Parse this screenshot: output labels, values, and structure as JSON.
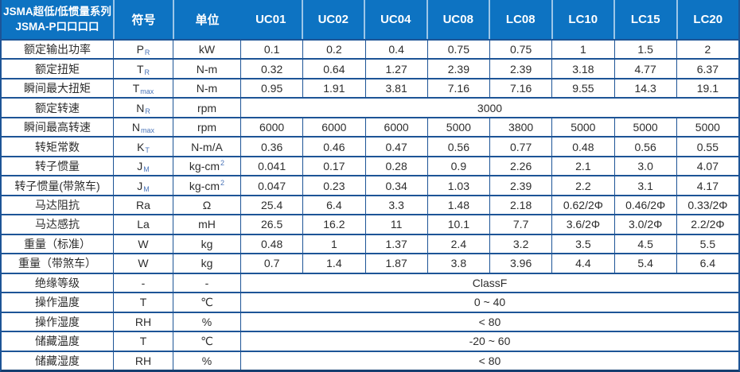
{
  "table": {
    "title_line1": "JSMA超低/低惯量系列",
    "title_line2": "JSMA-P口口口口",
    "col_symbol": "符号",
    "col_unit": "单位",
    "models": [
      "UC01",
      "UC02",
      "UC04",
      "UC08",
      "LC08",
      "LC10",
      "LC15",
      "LC20"
    ],
    "rows": [
      {
        "label": "额定输出功率",
        "symbol": "P",
        "sub": "R",
        "unit": "kW",
        "values": [
          "0.1",
          "0.2",
          "0.4",
          "0.75",
          "0.75",
          "1",
          "1.5",
          "2"
        ]
      },
      {
        "label": "额定扭矩",
        "symbol": "T",
        "sub": "R",
        "unit": "N-m",
        "values": [
          "0.32",
          "0.64",
          "1.27",
          "2.39",
          "2.39",
          "3.18",
          "4.77",
          "6.37"
        ]
      },
      {
        "label": "瞬间最大扭矩",
        "symbol": "T",
        "sub": "max",
        "unit": "N-m",
        "values": [
          "0.95",
          "1.91",
          "3.81",
          "7.16",
          "7.16",
          "9.55",
          "14.3",
          "19.1"
        ]
      },
      {
        "label": "额定转速",
        "symbol": "N",
        "sub": "R",
        "unit": "rpm",
        "merged": "3000"
      },
      {
        "label": "瞬间最高转速",
        "symbol": "N",
        "sub": "max",
        "unit": "rpm",
        "values": [
          "6000",
          "6000",
          "6000",
          "5000",
          "3800",
          "5000",
          "5000",
          "5000"
        ]
      },
      {
        "label": "转矩常数",
        "symbol": "K",
        "sub": "T",
        "unit": "N-m/A",
        "values": [
          "0.36",
          "0.46",
          "0.47",
          "0.56",
          "0.77",
          "0.48",
          "0.56",
          "0.55"
        ]
      },
      {
        "label": "转子惯量",
        "symbol": "J",
        "sub": "M",
        "unit": "kg-cm",
        "unit_sup": "2",
        "values": [
          "0.041",
          "0.17",
          "0.28",
          "0.9",
          "2.26",
          "2.1",
          "3.0",
          "4.07"
        ]
      },
      {
        "label": "转子惯量(带煞车)",
        "symbol": "J",
        "sub": "M",
        "unit": "kg-cm",
        "unit_sup": "2",
        "values": [
          "0.047",
          "0.23",
          "0.34",
          "1.03",
          "2.39",
          "2.2",
          "3.1",
          "4.17"
        ]
      },
      {
        "label": "马达阻抗",
        "symbol": "Ra",
        "unit": "Ω",
        "values": [
          "25.4",
          "6.4",
          "3.3",
          "1.48",
          "2.18",
          "0.62/2Φ",
          "0.46/2Φ",
          "0.33/2Φ"
        ]
      },
      {
        "label": "马达感抗",
        "symbol": "La",
        "unit": "mH",
        "values": [
          "26.5",
          "16.2",
          "11",
          "10.1",
          "7.7",
          "3.6/2Φ",
          "3.0/2Φ",
          "2.2/2Φ"
        ]
      },
      {
        "label": "重量（标准）",
        "symbol": "W",
        "unit": "kg",
        "values": [
          "0.48",
          "1",
          "1.37",
          "2.4",
          "3.2",
          "3.5",
          "4.5",
          "5.5"
        ]
      },
      {
        "label": "重量（带煞车）",
        "symbol": "W",
        "unit": "kg",
        "values": [
          "0.7",
          "1.4",
          "1.87",
          "3.8",
          "3.96",
          "4.4",
          "5.4",
          "6.4"
        ]
      },
      {
        "label": "绝缘等级",
        "symbol": "-",
        "unit": "-",
        "merged": "ClassF"
      },
      {
        "label": "操作温度",
        "symbol": "T",
        "unit": "℃",
        "merged": "0 ~ 40"
      },
      {
        "label": "操作湿度",
        "symbol": "RH",
        "unit": "%",
        "merged": "< 80"
      },
      {
        "label": "储藏温度",
        "symbol": "T",
        "unit": "℃",
        "merged": "-20 ~ 60"
      },
      {
        "label": "储藏湿度",
        "symbol": "RH",
        "unit": "%",
        "merged": "< 80"
      }
    ],
    "colors": {
      "header_bg": "#0d73c2",
      "header_sep": "#9cc6e8",
      "border": "#1d5496",
      "border_dark": "#153f70",
      "text": "#2d2d2d",
      "accent_sub": "#4a74b8"
    }
  }
}
